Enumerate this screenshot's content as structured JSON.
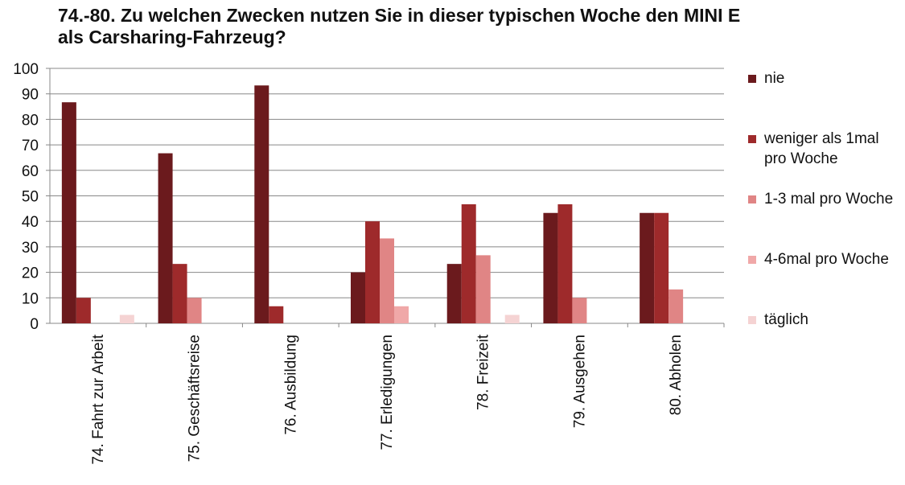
{
  "chart_data": {
    "type": "bar",
    "title": "74.-80. Zu welchen Zwecken nutzen Sie in dieser typischen Woche den MINI E als Carsharing-Fahrzeug?",
    "categories": [
      "74. Fahrt zur Arbeit",
      "75. Geschäftsreise",
      "76. Ausbildung",
      "77. Erledigungen",
      "78. Freizeit",
      "79. Ausgehen",
      "80. Abholen"
    ],
    "series": [
      {
        "name": "nie",
        "color": "#6b1a1d",
        "values": [
          86.7,
          66.7,
          93.3,
          20,
          23.3,
          43.3,
          43.3
        ]
      },
      {
        "name": "weniger als 1mal pro Woche",
        "color": "#9e2a2b",
        "values": [
          10,
          23.3,
          6.7,
          40,
          46.7,
          46.7,
          43.3
        ]
      },
      {
        "name": "1-3 mal pro Woche",
        "color": "#e08585",
        "values": [
          0,
          10,
          0,
          33.3,
          26.7,
          10,
          13.3
        ]
      },
      {
        "name": "4-6mal pro Woche",
        "color": "#f0a8a8",
        "values": [
          0,
          0,
          0,
          6.7,
          0,
          0,
          0
        ]
      },
      {
        "name": "täglich",
        "color": "#f5d3d3",
        "values": [
          3.3,
          0,
          0,
          0,
          3.3,
          0,
          0
        ]
      }
    ],
    "ylim": [
      0,
      100
    ],
    "yticks": [
      0,
      10,
      20,
      30,
      40,
      50,
      60,
      70,
      80,
      90,
      100
    ],
    "grid": true,
    "legend": "right"
  }
}
